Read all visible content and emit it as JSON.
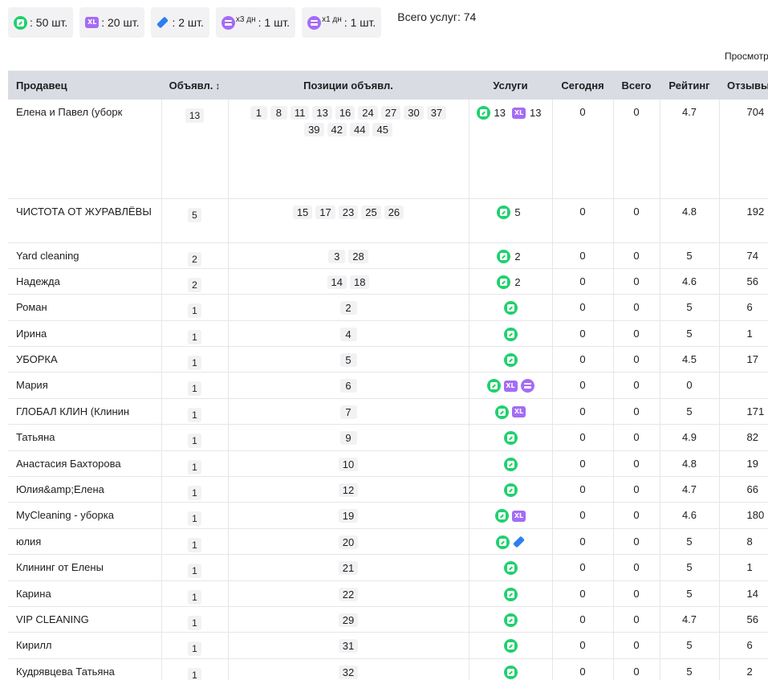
{
  "summary": {
    "boost": "50 шт.",
    "xl": "20 шт.",
    "highlight": "2 шт.",
    "up3": {
      "mult": "x3 дн",
      "count": "1 шт."
    },
    "up1": {
      "mult": "x1 дн",
      "count": "1 шт."
    },
    "separator": ":",
    "total": "Всего услуг: 74"
  },
  "views_label": "Просмотры",
  "colors": {
    "boost": "#1fd16e",
    "xl": "#a46cf5",
    "highlight": "#2d7ff0",
    "up": "#a46cf5",
    "header_bg": "#d9dce3",
    "badge_bg": "#f2f2f4"
  },
  "headers": {
    "seller": "Продавец",
    "ads": "Объявл.",
    "positions": "Позиции объявл.",
    "services": "Услуги",
    "today": "Сегодня",
    "total": "Всего",
    "rating": "Рейтинг",
    "reviews": "Отзывы"
  },
  "rows": [
    {
      "seller": "Елена и Павел (уборк",
      "ads": "13",
      "positions": [
        "1",
        "8",
        "11",
        "13",
        "16",
        "24",
        "27",
        "30",
        "37",
        "39",
        "42",
        "44",
        "45"
      ],
      "services": [
        {
          "icon": "boost",
          "count": "13"
        },
        {
          "icon": "xl",
          "count": "13"
        }
      ],
      "today": "0",
      "total": "0",
      "rating": "4.7",
      "reviews": "704",
      "size": "large"
    },
    {
      "seller": "ЧИСТОТА ОТ ЖУРАВЛЁВЫ",
      "ads": "5",
      "positions": [
        "15",
        "17",
        "23",
        "25",
        "26"
      ],
      "services": [
        {
          "icon": "boost",
          "count": "5"
        }
      ],
      "today": "0",
      "total": "0",
      "rating": "4.8",
      "reviews": "192",
      "size": "med"
    },
    {
      "seller": "Yard cleaning",
      "ads": "2",
      "positions": [
        "3",
        "28"
      ],
      "services": [
        {
          "icon": "boost",
          "count": "2"
        }
      ],
      "today": "0",
      "total": "0",
      "rating": "5",
      "reviews": "74",
      "size": "normal"
    },
    {
      "seller": "Надежда",
      "ads": "2",
      "positions": [
        "14",
        "18"
      ],
      "services": [
        {
          "icon": "boost",
          "count": "2"
        }
      ],
      "today": "0",
      "total": "0",
      "rating": "4.6",
      "reviews": "56",
      "size": "normal"
    },
    {
      "seller": "Роман",
      "ads": "1",
      "positions": [
        "2"
      ],
      "services": [
        {
          "icon": "boost",
          "count": ""
        }
      ],
      "today": "0",
      "total": "0",
      "rating": "5",
      "reviews": "6",
      "size": "normal"
    },
    {
      "seller": "Ирина",
      "ads": "1",
      "positions": [
        "4"
      ],
      "services": [
        {
          "icon": "boost",
          "count": ""
        }
      ],
      "today": "0",
      "total": "0",
      "rating": "5",
      "reviews": "1",
      "size": "normal"
    },
    {
      "seller": "УБОРКА",
      "ads": "1",
      "positions": [
        "5"
      ],
      "services": [
        {
          "icon": "boost",
          "count": ""
        }
      ],
      "today": "0",
      "total": "0",
      "rating": "4.5",
      "reviews": "17",
      "size": "normal"
    },
    {
      "seller": "Мария",
      "ads": "1",
      "positions": [
        "6"
      ],
      "services": [
        {
          "icon": "boost",
          "count": ""
        },
        {
          "icon": "xl",
          "count": ""
        },
        {
          "icon": "up",
          "count": ""
        }
      ],
      "today": "0",
      "total": "0",
      "rating": "0",
      "reviews": "",
      "size": "normal"
    },
    {
      "seller": "ГЛОБАЛ КЛИН (Клинин",
      "ads": "1",
      "positions": [
        "7"
      ],
      "services": [
        {
          "icon": "boost",
          "count": ""
        },
        {
          "icon": "xl",
          "count": ""
        }
      ],
      "today": "0",
      "total": "0",
      "rating": "5",
      "reviews": "171",
      "size": "normal"
    },
    {
      "seller": "Татьяна",
      "ads": "1",
      "positions": [
        "9"
      ],
      "services": [
        {
          "icon": "boost",
          "count": ""
        }
      ],
      "today": "0",
      "total": "0",
      "rating": "4.9",
      "reviews": "82",
      "size": "normal"
    },
    {
      "seller": "Анастасия Бахторова",
      "ads": "1",
      "positions": [
        "10"
      ],
      "services": [
        {
          "icon": "boost",
          "count": ""
        }
      ],
      "today": "0",
      "total": "0",
      "rating": "4.8",
      "reviews": "19",
      "size": "normal"
    },
    {
      "seller": "Юлия&amp;Елена",
      "ads": "1",
      "positions": [
        "12"
      ],
      "services": [
        {
          "icon": "boost",
          "count": ""
        }
      ],
      "today": "0",
      "total": "0",
      "rating": "4.7",
      "reviews": "66",
      "size": "normal"
    },
    {
      "seller": "MyCleaning - уборка",
      "ads": "1",
      "positions": [
        "19"
      ],
      "services": [
        {
          "icon": "boost",
          "count": ""
        },
        {
          "icon": "xl",
          "count": ""
        }
      ],
      "today": "0",
      "total": "0",
      "rating": "4.6",
      "reviews": "180",
      "size": "normal"
    },
    {
      "seller": "юлия",
      "ads": "1",
      "positions": [
        "20"
      ],
      "services": [
        {
          "icon": "boost",
          "count": ""
        },
        {
          "icon": "highlight",
          "count": ""
        }
      ],
      "today": "0",
      "total": "0",
      "rating": "5",
      "reviews": "8",
      "size": "normal"
    },
    {
      "seller": "Клининг от Елены",
      "ads": "1",
      "positions": [
        "21"
      ],
      "services": [
        {
          "icon": "boost",
          "count": ""
        }
      ],
      "today": "0",
      "total": "0",
      "rating": "5",
      "reviews": "1",
      "size": "normal"
    },
    {
      "seller": "Карина",
      "ads": "1",
      "positions": [
        "22"
      ],
      "services": [
        {
          "icon": "boost",
          "count": ""
        }
      ],
      "today": "0",
      "total": "0",
      "rating": "5",
      "reviews": "14",
      "size": "normal"
    },
    {
      "seller": "VIP CLEANING",
      "ads": "1",
      "positions": [
        "29"
      ],
      "services": [
        {
          "icon": "boost",
          "count": ""
        }
      ],
      "today": "0",
      "total": "0",
      "rating": "4.7",
      "reviews": "56",
      "size": "normal"
    },
    {
      "seller": "Кирилл",
      "ads": "1",
      "positions": [
        "31"
      ],
      "services": [
        {
          "icon": "boost",
          "count": ""
        }
      ],
      "today": "0",
      "total": "0",
      "rating": "5",
      "reviews": "6",
      "size": "normal"
    },
    {
      "seller": "Кудрявцева Татьяна",
      "ads": "1",
      "positions": [
        "32"
      ],
      "services": [
        {
          "icon": "boost",
          "count": ""
        }
      ],
      "today": "0",
      "total": "0",
      "rating": "5",
      "reviews": "2",
      "size": "normal"
    }
  ]
}
